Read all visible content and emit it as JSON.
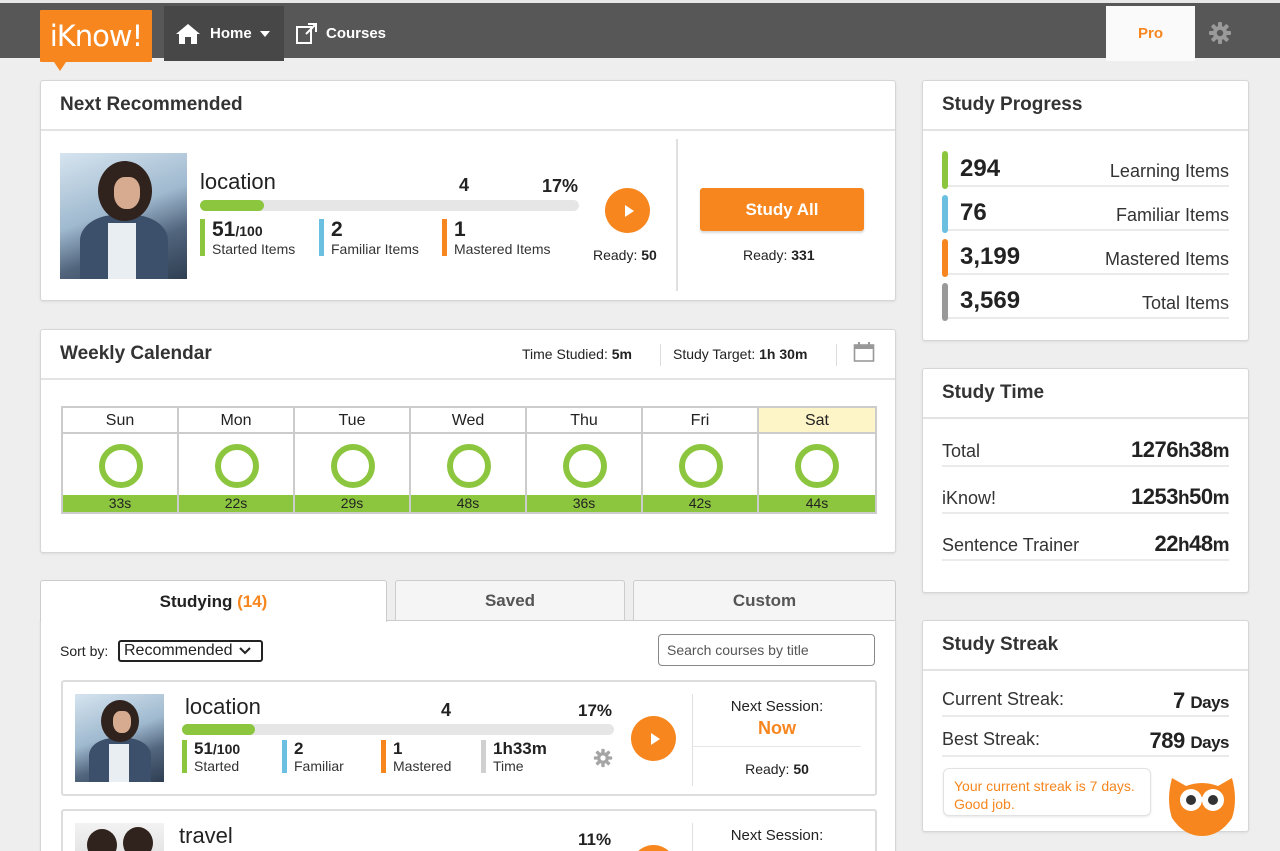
{
  "nav": {
    "logo": "iKnow!",
    "home": "Home",
    "courses": "Courses",
    "pro": "Pro"
  },
  "next": {
    "header": "Next Recommended",
    "course_title": "location",
    "count": "4",
    "percent": "17%",
    "progress": 0.17,
    "started_num": "51",
    "started_den": "/100",
    "started_label": "Started Items",
    "familiar_num": "2",
    "familiar_label": "Familiar Items",
    "mastered_num": "1",
    "mastered_label": "Mastered Items",
    "ready_label": "Ready:",
    "ready_value": "50",
    "study_all": "Study All",
    "all_ready_label": "Ready:",
    "all_ready_value": "331"
  },
  "calendar": {
    "header": "Weekly Calendar",
    "studied_label": "Time Studied:",
    "studied_value": "5m",
    "target_label": "Study Target:",
    "target_value": "1h 30m",
    "days": [
      {
        "day": "Sun",
        "time": "33s"
      },
      {
        "day": "Mon",
        "time": "22s"
      },
      {
        "day": "Tue",
        "time": "29s"
      },
      {
        "day": "Wed",
        "time": "48s"
      },
      {
        "day": "Thu",
        "time": "36s"
      },
      {
        "day": "Fri",
        "time": "42s"
      },
      {
        "day": "Sat",
        "time": "44s"
      }
    ],
    "highlight_color": "#fdf5c8"
  },
  "tabs": {
    "studying": "Studying",
    "studying_count": "(14)",
    "saved": "Saved",
    "custom": "Custom"
  },
  "sort": {
    "label": "Sort by:",
    "selected": "Recommended",
    "search_placeholder": "Search courses by title"
  },
  "courses": [
    {
      "title": "location",
      "count": "4",
      "percent": "17%",
      "progress": 0.17,
      "started_num": "51",
      "started_den": "/100",
      "started_label": "Started",
      "familiar_num": "2",
      "familiar_label": "Familiar",
      "mastered_num": "1",
      "mastered_label": "Mastered",
      "time_h": "1h",
      "time_m": "33m",
      "time_label": "Time",
      "next_label": "Next Session:",
      "next_value": "Now",
      "ready_label": "Ready:",
      "ready_value": "50"
    },
    {
      "title": "travel",
      "percent": "11%",
      "next_label": "Next Session:"
    }
  ],
  "study_progress": {
    "header": "Study Progress",
    "rows": [
      {
        "value": "294",
        "label": "Learning Items",
        "color": "#8cc63f"
      },
      {
        "value": "76",
        "label": "Familiar Items",
        "color": "#6bbfe0"
      },
      {
        "value": "3,199",
        "label": "Mastered Items",
        "color": "#f7861e"
      },
      {
        "value": "3,569",
        "label": "Total Items",
        "color": "#999999"
      }
    ]
  },
  "study_time": {
    "header": "Study Time",
    "rows": [
      {
        "label": "Total",
        "h": "1276",
        "m": "38"
      },
      {
        "label": "iKnow!",
        "h": "1253",
        "m": "50"
      },
      {
        "label": "Sentence Trainer",
        "h": "22",
        "m": "48"
      }
    ]
  },
  "streak": {
    "header": "Study Streak",
    "current_label": "Current Streak:",
    "current_value": "7",
    "best_label": "Best Streak:",
    "best_value": "789",
    "unit": "Days",
    "message": "Your current streak is 7 days. Good job."
  },
  "colors": {
    "accent": "#f7861e",
    "green": "#8cc63f",
    "blue": "#6bbfe0",
    "nav": "#575757"
  }
}
